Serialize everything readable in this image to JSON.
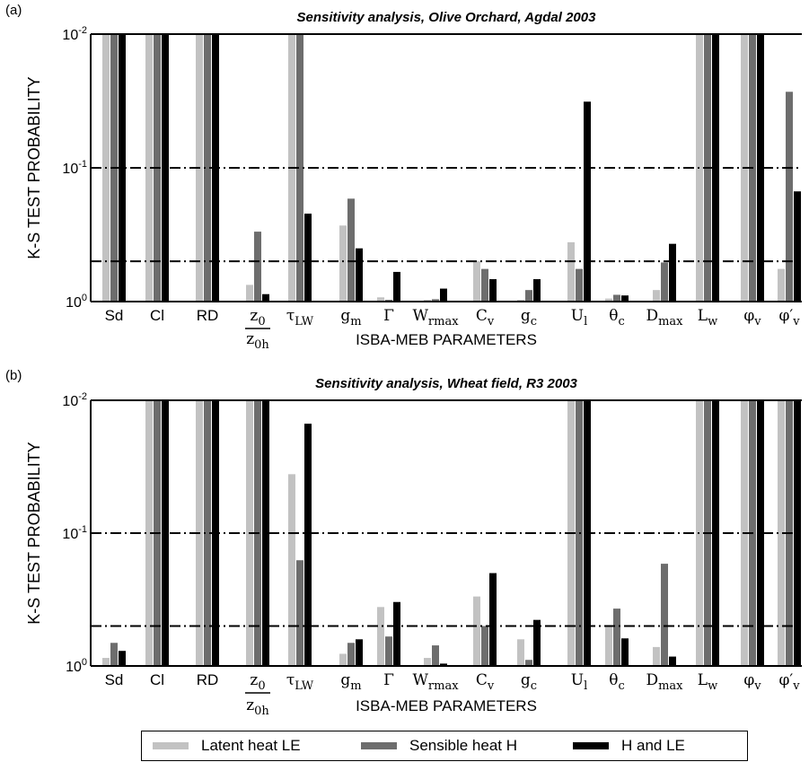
{
  "chart_data": [
    {
      "type": "bar",
      "panel_label": "(a)",
      "title": "Sensitivity analysis, Olive Orchard, Agdal 2003",
      "xlabel": "ISBA-MEB PARAMETERS",
      "ylabel": "K-S TEST PROBABILITY",
      "yscale": "log",
      "ytick_labels": [
        "10-2",
        "10-1",
        "100"
      ],
      "reference_lines": [
        0.1,
        0.5
      ],
      "categories": [
        "Sd",
        "Cl",
        "RD",
        "z0/z0h",
        "τLW",
        "gm",
        "Γ",
        "Wrmax",
        "Cv",
        "gc",
        "Ul",
        "θc",
        "Dmax",
        "Lw",
        "φv",
        "φ′v"
      ],
      "series": [
        {
          "name": "Latent heat LE",
          "values": [
            0.01,
            0.01,
            0.01,
            0.75,
            0.01,
            0.27,
            0.93,
            0.97,
            0.5,
            0.97,
            0.36,
            0.95,
            0.82,
            0.01,
            0.01,
            0.57
          ]
        },
        {
          "name": "Sensible heat H",
          "values": [
            0.01,
            0.01,
            0.01,
            0.3,
            0.01,
            0.17,
            0.97,
            0.96,
            0.57,
            0.82,
            0.57,
            0.89,
            0.51,
            0.01,
            0.01,
            0.027
          ]
        },
        {
          "name": "H and LE",
          "values": [
            0.01,
            0.01,
            0.01,
            0.88,
            0.22,
            0.4,
            0.6,
            0.8,
            0.68,
            0.68,
            0.032,
            0.9,
            0.37,
            0.01,
            0.01,
            0.15
          ]
        }
      ]
    },
    {
      "type": "bar",
      "panel_label": "(b)",
      "title": "Sensitivity analysis, Wheat field, R3 2003",
      "xlabel": "ISBA-MEB PARAMETERS",
      "ylabel": "K-S TEST PROBABILITY",
      "yscale": "log",
      "ytick_labels": [
        "10-2",
        "10-1",
        "100"
      ],
      "reference_lines": [
        0.1,
        0.5
      ],
      "categories": [
        "Sd",
        "Cl",
        "RD",
        "z0/z0h",
        "τLW",
        "gm",
        "Γ",
        "Wrmax",
        "Cv",
        "gc",
        "Ul",
        "θc",
        "Dmax",
        "Lw",
        "φv",
        "φ′v"
      ],
      "series": [
        {
          "name": "Latent heat LE",
          "values": [
            0.87,
            0.01,
            0.01,
            0.01,
            0.036,
            0.81,
            0.36,
            0.87,
            0.3,
            0.63,
            0.01,
            0.5,
            0.72,
            0.01,
            0.01,
            0.01
          ]
        },
        {
          "name": "Sensible heat H",
          "values": [
            0.67,
            0.01,
            0.01,
            0.01,
            0.16,
            0.67,
            0.6,
            0.7,
            0.5,
            0.9,
            0.01,
            0.37,
            0.17,
            0.01,
            0.01,
            0.01
          ]
        },
        {
          "name": "H and LE",
          "values": [
            0.77,
            0.01,
            0.01,
            0.01,
            0.015,
            0.63,
            0.33,
            0.96,
            0.2,
            0.45,
            0.01,
            0.62,
            0.85,
            0.01,
            0.01,
            0.01
          ]
        }
      ]
    }
  ],
  "colors": {
    "latent": "#c2c2c2",
    "sensible": "#6d6d6d",
    "both": "#000000"
  }
}
